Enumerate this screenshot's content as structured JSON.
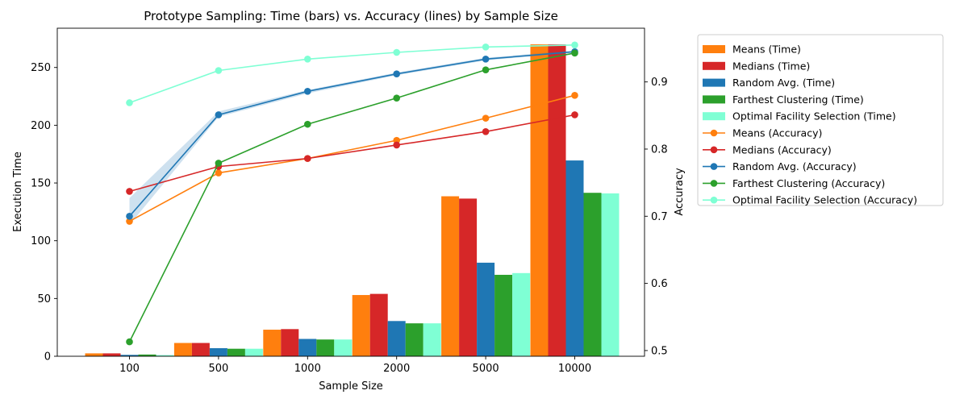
{
  "chart_data": {
    "type": "bar",
    "title": "Prototype Sampling: Time (bars) vs. Accuracy (lines) by Sample Size",
    "xlabel": "Sample Size",
    "ylabel": "Execution Time",
    "y2label": "Accuracy",
    "categories": [
      "100",
      "500",
      "1000",
      "2000",
      "5000",
      "10000"
    ],
    "ylim": [
      0,
      284
    ],
    "y2lim": [
      0.4915,
      0.98
    ],
    "yticks": [
      "0",
      "50",
      "100",
      "150",
      "200",
      "250"
    ],
    "y2ticks": [
      "0.5",
      "0.6",
      "0.7",
      "0.8",
      "0.9"
    ],
    "legend_position": "outside right",
    "bar_series": [
      {
        "name": "Means (Time)",
        "color": "#ff7f0e",
        "values": [
          2.5,
          11.5,
          23,
          53,
          138.5,
          270
        ]
      },
      {
        "name": "Medians (Time)",
        "color": "#d62728",
        "values": [
          2.5,
          11.5,
          23.5,
          54,
          136.5,
          270
        ]
      },
      {
        "name": "Random Avg. (Time)",
        "color": "#1f77b4",
        "values": [
          1.2,
          7,
          15,
          30.5,
          81,
          169.5
        ]
      },
      {
        "name": "Farthest Clustering (Time)",
        "color": "#2ca02c",
        "values": [
          1.5,
          6.5,
          14.5,
          28.5,
          70.5,
          141.5
        ]
      },
      {
        "name": "Optimal Facility Selection (Time)",
        "color": "#7fffd4",
        "values": [
          1,
          6.5,
          14.5,
          28.5,
          72,
          141
        ]
      }
    ],
    "line_series": [
      {
        "name": "Means (Accuracy)",
        "color": "#ff7f0e",
        "values": [
          0.6925,
          0.7645,
          0.786,
          0.813,
          0.846,
          0.88
        ]
      },
      {
        "name": "Medians (Accuracy)",
        "color": "#d62728",
        "values": [
          0.737,
          0.774,
          0.786,
          0.806,
          0.826,
          0.851
        ]
      },
      {
        "name": "Random Avg. (Accuracy)",
        "color": "#1f77b4",
        "values": [
          0.7,
          0.851,
          0.886,
          0.912,
          0.934,
          0.945
        ],
        "band_low": [
          0.687,
          0.848,
          0.883,
          0.91,
          0.932,
          0.944
        ],
        "band_high": [
          0.727,
          0.856,
          0.888,
          0.914,
          0.936,
          0.947
        ]
      },
      {
        "name": "Farthest Clustering (Accuracy)",
        "color": "#2ca02c",
        "values": [
          0.513,
          0.779,
          0.837,
          0.876,
          0.918,
          0.943
        ]
      },
      {
        "name": "Optimal Facility Selection (Accuracy)",
        "color": "#7fffd4",
        "values": [
          0.869,
          0.917,
          0.934,
          0.944,
          0.952,
          0.955
        ]
      }
    ]
  }
}
